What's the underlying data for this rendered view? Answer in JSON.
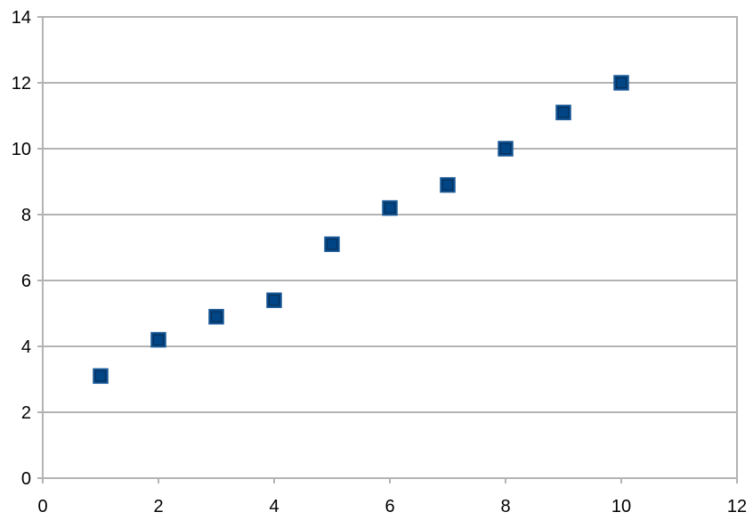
{
  "chart_data": {
    "type": "scatter",
    "title": "",
    "xlabel": "",
    "ylabel": "",
    "xlim": [
      0,
      12
    ],
    "ylim": [
      0,
      14
    ],
    "x_ticks": [
      0,
      2,
      4,
      6,
      8,
      10,
      12
    ],
    "y_ticks": [
      0,
      2,
      4,
      6,
      8,
      10,
      12,
      14
    ],
    "grid": "horizontal",
    "legend": "none",
    "marker": "square",
    "series": [
      {
        "color": "#004586",
        "x": [
          1,
          2,
          3,
          4,
          5,
          6,
          7,
          8,
          9,
          10
        ],
        "y": [
          3.1,
          4.2,
          4.9,
          5.4,
          7.1,
          8.2,
          8.9,
          10.0,
          11.1,
          12.0
        ]
      }
    ]
  }
}
